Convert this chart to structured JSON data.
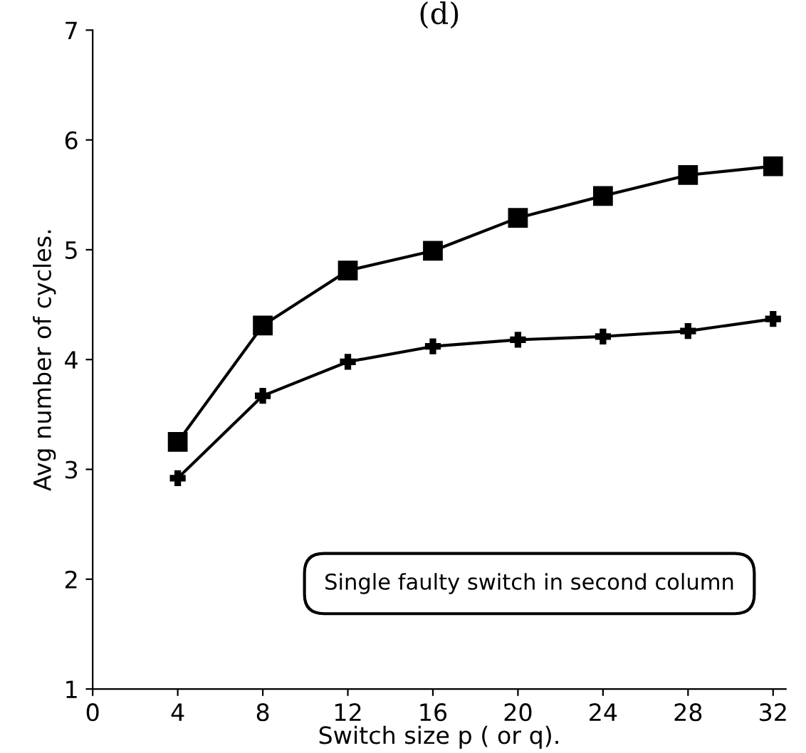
{
  "chart_data": {
    "type": "line",
    "title": "(d)",
    "xlabel": "Switch size p ( or q).",
    "ylabel": "Avg number of cycles.",
    "x": [
      4,
      8,
      12,
      16,
      20,
      24,
      28,
      32
    ],
    "series": [
      {
        "color": "#000000",
        "marker": "square",
        "values": [
          3.25,
          4.31,
          4.81,
          4.99,
          5.29,
          5.49,
          5.68,
          5.76
        ]
      },
      {
        "color": "#000000",
        "marker": "cross",
        "values": [
          2.92,
          3.67,
          3.98,
          4.12,
          4.18,
          4.21,
          4.26,
          4.37
        ]
      }
    ],
    "xlim": [
      0,
      32.6
    ],
    "xticks": [
      0,
      4,
      8,
      12,
      16,
      20,
      24,
      28,
      32
    ],
    "ylim": [
      1,
      7
    ],
    "yticks": [
      1,
      2,
      3,
      4,
      5,
      6,
      7
    ],
    "annotations": [
      "Single faulty switch in second column"
    ],
    "grid": false,
    "legend": false,
    "line_style": "solid"
  }
}
